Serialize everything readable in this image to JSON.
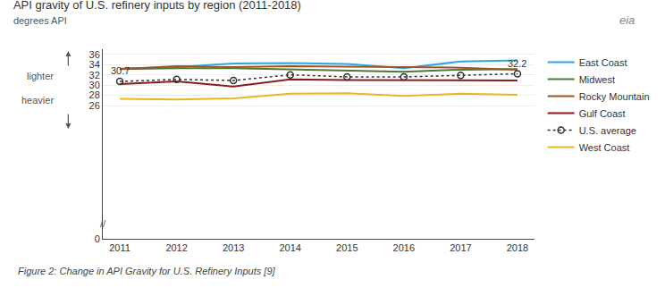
{
  "chart_data": {
    "type": "line",
    "title": "API gravity of U.S. refinery inputs by region (2011-2018)",
    "subtitle": "degrees API",
    "x": [
      2011,
      2012,
      2013,
      2014,
      2015,
      2016,
      2017,
      2018
    ],
    "series": [
      {
        "name": "East Coast",
        "color": "#29ABE2",
        "line_style": "solid",
        "values": [
          33.2,
          33.5,
          34.2,
          34.3,
          34.1,
          33.3,
          34.6,
          34.8
        ]
      },
      {
        "name": "Midwest",
        "color": "#4C7A34",
        "line_style": "solid",
        "values": [
          33.1,
          33.3,
          33.3,
          33.1,
          32.9,
          32.6,
          33.0,
          33.1
        ]
      },
      {
        "name": "Rocky Mountain",
        "color": "#A0522D",
        "line_style": "solid",
        "values": [
          33.1,
          33.7,
          33.5,
          33.7,
          33.6,
          33.5,
          33.4,
          33.0
        ]
      },
      {
        "name": "Gulf Coast",
        "color": "#8B1A1A",
        "line_style": "solid",
        "values": [
          30.2,
          30.7,
          29.7,
          31.1,
          31.0,
          31.0,
          31.0,
          30.9
        ]
      },
      {
        "name": "U.S. average",
        "color": "#333333",
        "line_style": "dotted",
        "marker": "circle-open",
        "values": [
          30.7,
          31.1,
          30.9,
          32.0,
          31.6,
          31.6,
          31.9,
          32.2
        ],
        "value_labels": [
          "30.7",
          null,
          null,
          null,
          null,
          null,
          null,
          "32.2"
        ]
      },
      {
        "name": "West Coast",
        "color": "#E8B820",
        "line_style": "solid",
        "values": [
          27.3,
          27.2,
          27.4,
          28.3,
          28.4,
          27.9,
          28.3,
          28.1
        ]
      }
    ],
    "xlim": [
      2010.7,
      2018.3
    ],
    "xticks": [
      2011,
      2012,
      2013,
      2014,
      2015,
      2016,
      2017,
      2018
    ],
    "ylim": [
      0,
      37
    ],
    "yticks": [
      0,
      26,
      28,
      30,
      32,
      34,
      36
    ],
    "grid": true,
    "legend": "right",
    "annotations": [
      "lighter",
      "heavier",
      "//",
      "eia",
      "Figure 2: Change in API Gravity for U.S. Refinery Inputs [9]"
    ]
  }
}
